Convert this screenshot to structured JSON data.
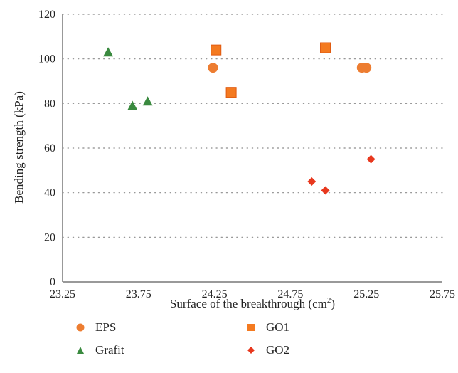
{
  "chart_data": {
    "type": "scatter",
    "title": "",
    "xlabel": "Surface of the breakthrough (cm",
    "xlabel_sup": "2",
    "xlabel_end": ")",
    "ylabel": "Bending strength (kPa)",
    "xlim": [
      23.25,
      25.75
    ],
    "ylim": [
      0,
      120
    ],
    "x_ticks": [
      "23.25",
      "23.75",
      "24.25",
      "24.75",
      "25.25",
      "25.75"
    ],
    "y_ticks": [
      "0",
      "20",
      "40",
      "60",
      "80",
      "100",
      "120"
    ],
    "x_tick_values": [
      23.25,
      23.75,
      24.25,
      24.75,
      25.25,
      25.75
    ],
    "y_tick_values": [
      0,
      20,
      40,
      60,
      80,
      100,
      120
    ],
    "grid": "horizontal dotted",
    "legend_position": "bottom",
    "series": [
      {
        "name": "EPS",
        "marker": "circle",
        "color": "#ED7D31",
        "points": [
          [
            24.24,
            96
          ],
          [
            25.22,
            96
          ],
          [
            25.25,
            96
          ]
        ]
      },
      {
        "name": "Grafit",
        "marker": "triangle",
        "color": "#3A8A3F",
        "points": [
          [
            23.55,
            103
          ],
          [
            23.71,
            79
          ],
          [
            23.81,
            81
          ]
        ]
      },
      {
        "name": "GO1",
        "marker": "square",
        "color": "#F47A20",
        "points": [
          [
            24.26,
            104
          ],
          [
            24.36,
            85
          ],
          [
            24.98,
            105
          ]
        ]
      },
      {
        "name": "GO2",
        "marker": "diamond",
        "color": "#E8381E",
        "points": [
          [
            24.89,
            45
          ],
          [
            24.98,
            41
          ],
          [
            25.28,
            55
          ]
        ]
      }
    ]
  }
}
